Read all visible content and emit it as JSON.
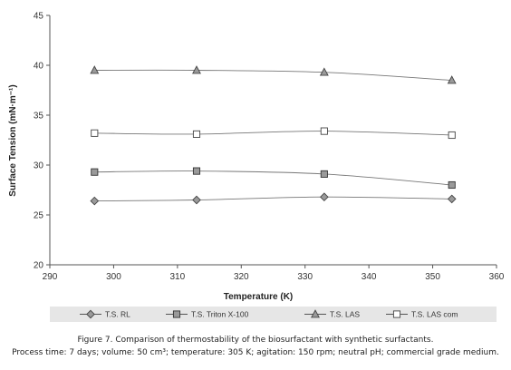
{
  "chart_data": {
    "type": "line",
    "xlabel": "Temperature (K)",
    "ylabel": "Surface Tension (mN·m⁻¹)",
    "xlim": [
      290,
      360
    ],
    "ylim": [
      20,
      45
    ],
    "xticks": [
      290,
      300,
      310,
      320,
      330,
      340,
      350,
      360
    ],
    "yticks": [
      20,
      25,
      30,
      35,
      40,
      45
    ],
    "x": [
      297,
      313,
      333,
      353
    ],
    "grid": false,
    "legend_position": "bottom",
    "series": [
      {
        "name": "T.S. RL",
        "marker": "diamond",
        "values": [
          26.4,
          26.5,
          26.8,
          26.6
        ]
      },
      {
        "name": "T.S. Triton X-100",
        "marker": "square-filled",
        "values": [
          29.3,
          29.4,
          29.1,
          28.0
        ]
      },
      {
        "name": "T.S. LAS",
        "marker": "triangle",
        "values": [
          39.5,
          39.5,
          39.3,
          38.5
        ]
      },
      {
        "name": "T.S. LAS com",
        "marker": "square-open",
        "values": [
          33.2,
          33.1,
          33.4,
          33.0
        ]
      }
    ]
  },
  "caption": {
    "line1": "Figure 7. Comparison of thermostability of the biosurfactant with synthetic surfactants.",
    "line2": "Process time: 7 days; volume: 50 cm³; temperature: 305 K; agitation: 150 rpm; neutral pH; commercial grade medium."
  }
}
